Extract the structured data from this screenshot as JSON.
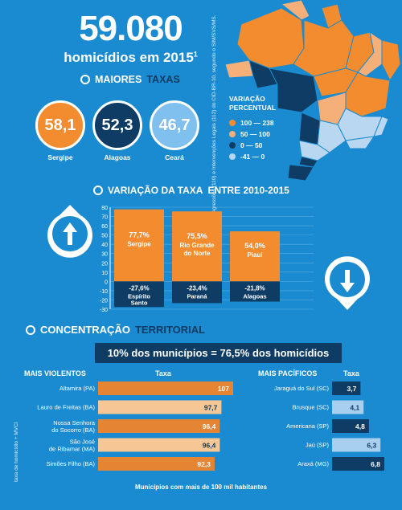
{
  "header": {
    "total": "59.080",
    "subtitle": "homicídios em 2015",
    "footnote_mark": "1"
  },
  "side_note_top": "1. Inclui as categorias Agressões (110) e Intervenções Legais (112) do CID-BR-10, segundo o SIM/SVS/MS.",
  "side_note_bottom": "taxa de homicídio + MVCI",
  "highest_rates": {
    "title_plain": "MAIORES",
    "title_accent": "TAXAS",
    "items": [
      {
        "value": "58,1",
        "label": "Sergipe",
        "color": "#f28c2f"
      },
      {
        "value": "52,3",
        "label": "Alagoas",
        "color": "#0e3c64"
      },
      {
        "value": "46,7",
        "label": "Ceará",
        "color": "#7fc0ee"
      }
    ]
  },
  "map_legend": {
    "title": "VARIAÇÃO\nPERCENTUAL",
    "items": [
      {
        "label": "100 — 238",
        "color": "#f28c2f"
      },
      {
        "label": "50 — 100",
        "color": "#f5b07a"
      },
      {
        "label": "0 — 50",
        "color": "#0e3c64"
      },
      {
        "label": "-41 — 0",
        "color": "#b9d7f0"
      }
    ]
  },
  "variation_section": {
    "title_plain": "VARIAÇÃO DA TAXA",
    "title_accent": "ENTRE 2010-2015"
  },
  "territorial_section": {
    "title_plain": "CONCENTRAÇÃO",
    "title_accent": "TERRITORIAL",
    "banner": "10% dos municípios = 76,5% dos homicídios",
    "footer": "Municípios com mais de 100 mil habitantes"
  },
  "chart_data": [
    {
      "type": "bar",
      "title": "VARIAÇÃO DA TAXA ENTRE 2010-2015",
      "ylim": [
        -30,
        80
      ],
      "yticks": [
        -30,
        -20,
        -10,
        0,
        10,
        20,
        30,
        40,
        50,
        60,
        70,
        80
      ],
      "groups": [
        {
          "up": {
            "label": "77,7%",
            "name": "Sergipe",
            "value": 77.7
          },
          "down": {
            "label": "-27,6%",
            "name": "Espírito\nSanto",
            "value": -27.6
          }
        },
        {
          "up": {
            "label": "75,5%",
            "name": "Rio Grande\ndo Norte",
            "value": 75.5
          },
          "down": {
            "label": "-23,4%",
            "name": "Paraná",
            "value": -23.4
          }
        },
        {
          "up": {
            "label": "54,0%",
            "name": "Piauí",
            "value": 54.0
          },
          "down": {
            "label": "-21,8%",
            "name": "Alagoas",
            "value": -21.8
          }
        }
      ]
    },
    {
      "type": "bar",
      "title": "MAIS VIOLENTOS",
      "value_header": "Taxa",
      "categories": [
        "Altamira (PA)",
        "Lauro de Freitas (BA)",
        "Nossa Senhora\ndo Socorro (BA)",
        "São José\nde Ribamar (MA)",
        "Simões Filho (BA)"
      ],
      "labels": [
        "107",
        "97,7",
        "96,4",
        "96,4",
        "92,3"
      ],
      "values": [
        107,
        97.7,
        96.4,
        96.4,
        92.3
      ],
      "colors": [
        "#e58433",
        "#f6c694",
        "#e58433",
        "#f6c694",
        "#e58433"
      ]
    },
    {
      "type": "bar",
      "title": "MAIS PACÍFICOS",
      "value_header": "Taxa",
      "categories": [
        "Jaraguá do Sul (SC)",
        "Brusque (SC)",
        "Americana (SP)",
        "Jaú (SP)",
        "Araxá (MG)"
      ],
      "labels": [
        "3,7",
        "4,1",
        "4,8",
        "6,3",
        "6,8"
      ],
      "values": [
        3.7,
        4.1,
        4.8,
        6.3,
        6.8
      ],
      "colors": [
        "#0e3c64",
        "#a9cfee",
        "#0e3c64",
        "#a9cfee",
        "#0e3c64"
      ]
    }
  ]
}
